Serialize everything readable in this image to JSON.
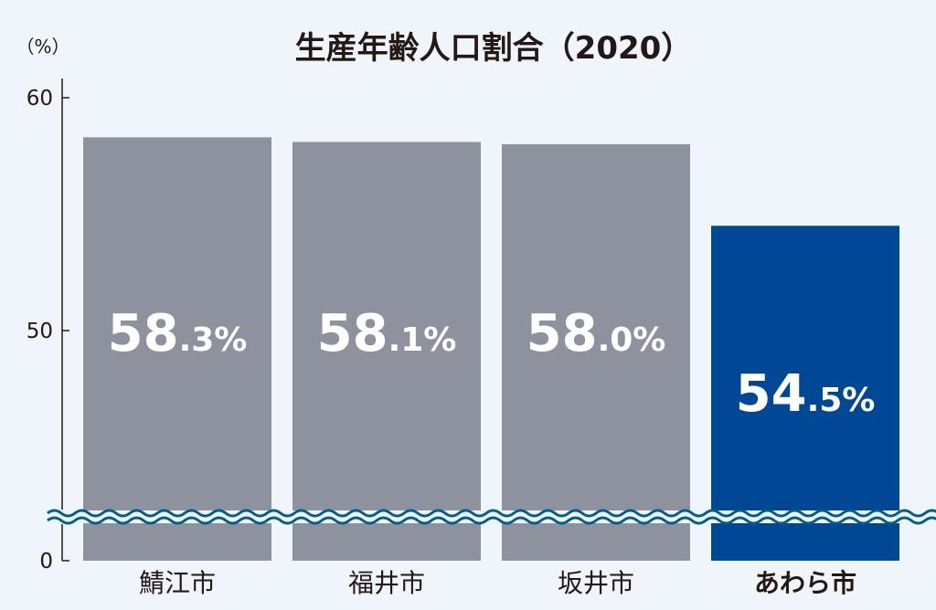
{
  "chart_data": {
    "type": "bar",
    "title": "生産年齢人口割合（2020）",
    "unit_label": "（%）",
    "categories": [
      "鯖江市",
      "福井市",
      "坂井市",
      "あわら市"
    ],
    "values": [
      58.3,
      58.1,
      58.0,
      54.5
    ],
    "value_labels": [
      {
        "main": "58",
        "frac": ".3%"
      },
      {
        "main": "58",
        "frac": ".1%"
      },
      {
        "main": "58",
        "frac": ".0%"
      },
      {
        "main": "54",
        "frac": ".5%"
      }
    ],
    "highlight_index": 3,
    "y_ticks": [
      "0",
      "50",
      "60"
    ],
    "ylim": [
      0,
      60
    ],
    "axis_break": true,
    "grid": false,
    "colors": {
      "bar": "#8e929f",
      "highlight": "#004896",
      "background": "#eff5fa",
      "break_wave": "#005d8c",
      "text": "#231815"
    }
  }
}
